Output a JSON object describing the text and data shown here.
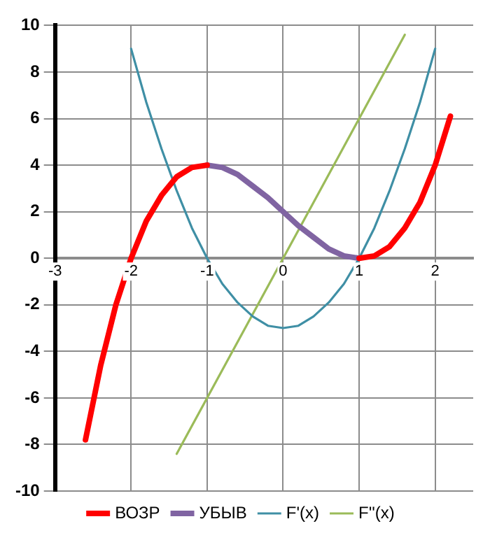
{
  "chart_data": {
    "type": "line",
    "xlim": [
      -3,
      2.5
    ],
    "xticks": [
      -3,
      -2,
      -1,
      0,
      1,
      2
    ],
    "ylim": [
      -10,
      10
    ],
    "yticks": [
      -10,
      -8,
      -6,
      -4,
      -2,
      0,
      2,
      4,
      6,
      8,
      10
    ],
    "grid": true,
    "legend": "bottom",
    "marker": "none",
    "line_style": "solid",
    "series": [
      {
        "name": "ВОЗР",
        "color": "#ff0000",
        "x": [
          -2.6,
          -2.4,
          -2.2,
          -2,
          -1.8,
          -1.6,
          -1.4,
          -1.2,
          -1,
          0,
          1,
          1.2,
          1.4,
          1.6,
          1.8,
          2,
          2.2
        ],
        "values": [
          -7.8,
          -4.6,
          -2.0,
          0,
          1.6,
          2.7,
          3.5,
          3.9,
          4,
          null,
          0,
          0.1,
          0.5,
          1.3,
          2.4,
          4,
          6.1
        ]
      },
      {
        "name": "УБЫВ",
        "color": "#8064a2",
        "x": [
          -1,
          -0.8,
          -0.6,
          -0.4,
          -0.2,
          0,
          0.2,
          0.4,
          0.6,
          0.8,
          1
        ],
        "values": [
          4,
          3.9,
          3.6,
          3.1,
          2.6,
          2,
          1.4,
          0.9,
          0.4,
          0.1,
          0
        ]
      },
      {
        "name": "F'(x)",
        "color": "#3f8fa5",
        "x": [
          -2,
          -1.8,
          -1.6,
          -1.4,
          -1.2,
          -1,
          -0.8,
          -0.6,
          -0.4,
          -0.2,
          0,
          0.2,
          0.4,
          0.6,
          0.8,
          1,
          1.2,
          1.4,
          1.6,
          1.8,
          2
        ],
        "values": [
          9,
          6.7,
          4.7,
          2.9,
          1.3,
          0,
          -1.1,
          -1.9,
          -2.5,
          -2.9,
          -3,
          -2.9,
          -2.5,
          -1.9,
          -1.1,
          0,
          1.3,
          2.9,
          4.7,
          6.7,
          9
        ]
      },
      {
        "name": "F''(x)",
        "color": "#9bbb59",
        "x": [
          -1.4,
          1.6
        ],
        "values": [
          -8.4,
          9.6
        ]
      }
    ]
  }
}
